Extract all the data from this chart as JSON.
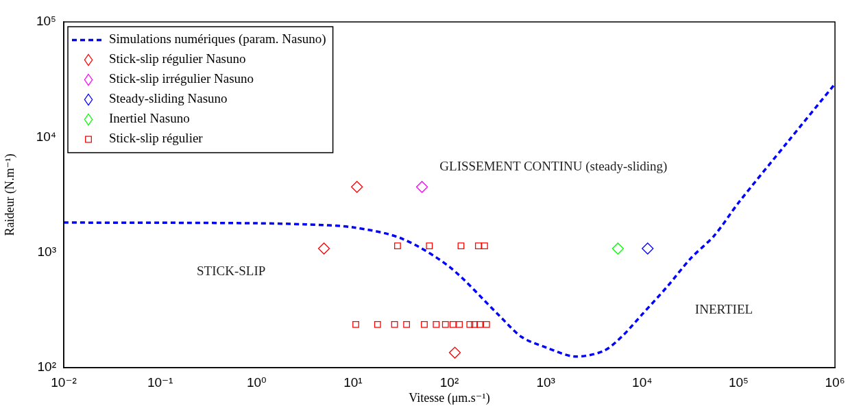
{
  "chart_data": {
    "type": "scatter",
    "xlabel": "Vitesse (μm.s⁻¹)",
    "ylabel": "Raideur (N.m⁻¹)",
    "log": "xy",
    "grid": false,
    "legend": "top left",
    "xlim": [
      0.01,
      1000000
    ],
    "ylim": [
      100,
      100000
    ],
    "xticks": [
      {
        "value": 0.01,
        "label": "10⁻²"
      },
      {
        "value": 0.1,
        "label": "10⁻¹"
      },
      {
        "value": 1,
        "label": "10⁰"
      },
      {
        "value": 10,
        "label": "10¹"
      },
      {
        "value": 100,
        "label": "10²"
      },
      {
        "value": 1000,
        "label": "10³"
      },
      {
        "value": 10000,
        "label": "10⁴"
      },
      {
        "value": 100000,
        "label": "10⁵"
      },
      {
        "value": 1000000,
        "label": "10⁶"
      }
    ],
    "yticks": [
      {
        "value": 100,
        "label": "10²"
      },
      {
        "value": 1000,
        "label": "10³"
      },
      {
        "value": 10000,
        "label": "10⁴"
      },
      {
        "value": 100000,
        "label": "10⁵"
      }
    ],
    "series": [
      {
        "name": "Simulations numériques (param. Nasuno)",
        "type": "line",
        "color": "#0000ff",
        "line_style": "dashed",
        "marker": "none",
        "x": [
          0.01,
          0.1,
          1,
          3.2,
          10,
          32,
          100,
          320,
          560,
          1000,
          2000,
          4000,
          6300,
          10000,
          18000,
          32000,
          56000,
          100000,
          320000,
          1000000
        ],
        "values": [
          1815,
          1810,
          1790,
          1750,
          1650,
          1320,
          750,
          290,
          185,
          150,
          125,
          140,
          190,
          290,
          500,
          890,
          1400,
          2700,
          9000,
          29000
        ]
      },
      {
        "name": "Stick-slip régulier Nasuno",
        "color": "#ff0000",
        "marker": "diamond",
        "x": [
          5,
          11,
          114
        ],
        "values": [
          1080,
          3700,
          135
        ]
      },
      {
        "name": "Stick-slip irrégulier Nasuno",
        "color": "#ff00ff",
        "marker": "diamond",
        "x": [
          52
        ],
        "values": [
          3700
        ]
      },
      {
        "name": "Steady-sliding Nasuno",
        "color": "#0000ff",
        "marker": "diamond",
        "x": [
          11400
        ],
        "values": [
          1080
        ]
      },
      {
        "name": "Inertiel Nasuno",
        "color": "#00ff00",
        "marker": "diamond",
        "x": [
          5600
        ],
        "values": [
          1080
        ]
      },
      {
        "name": "Stick-slip régulier",
        "color": "#ff0000",
        "marker": "square",
        "x": [
          29,
          62,
          132,
          200,
          232,
          10.7,
          18,
          27,
          36,
          55,
          73,
          91,
          109,
          127,
          163,
          182,
          207,
          243
        ],
        "values": [
          1140,
          1140,
          1140,
          1140,
          1140,
          237,
          237,
          237,
          237,
          237,
          237,
          237,
          237,
          237,
          237,
          237,
          237,
          237
        ]
      }
    ],
    "annotations": [
      "GLISSEMENT CONTINU (steady-sliding)",
      "STICK-SLIP",
      "INERTIEL"
    ]
  }
}
